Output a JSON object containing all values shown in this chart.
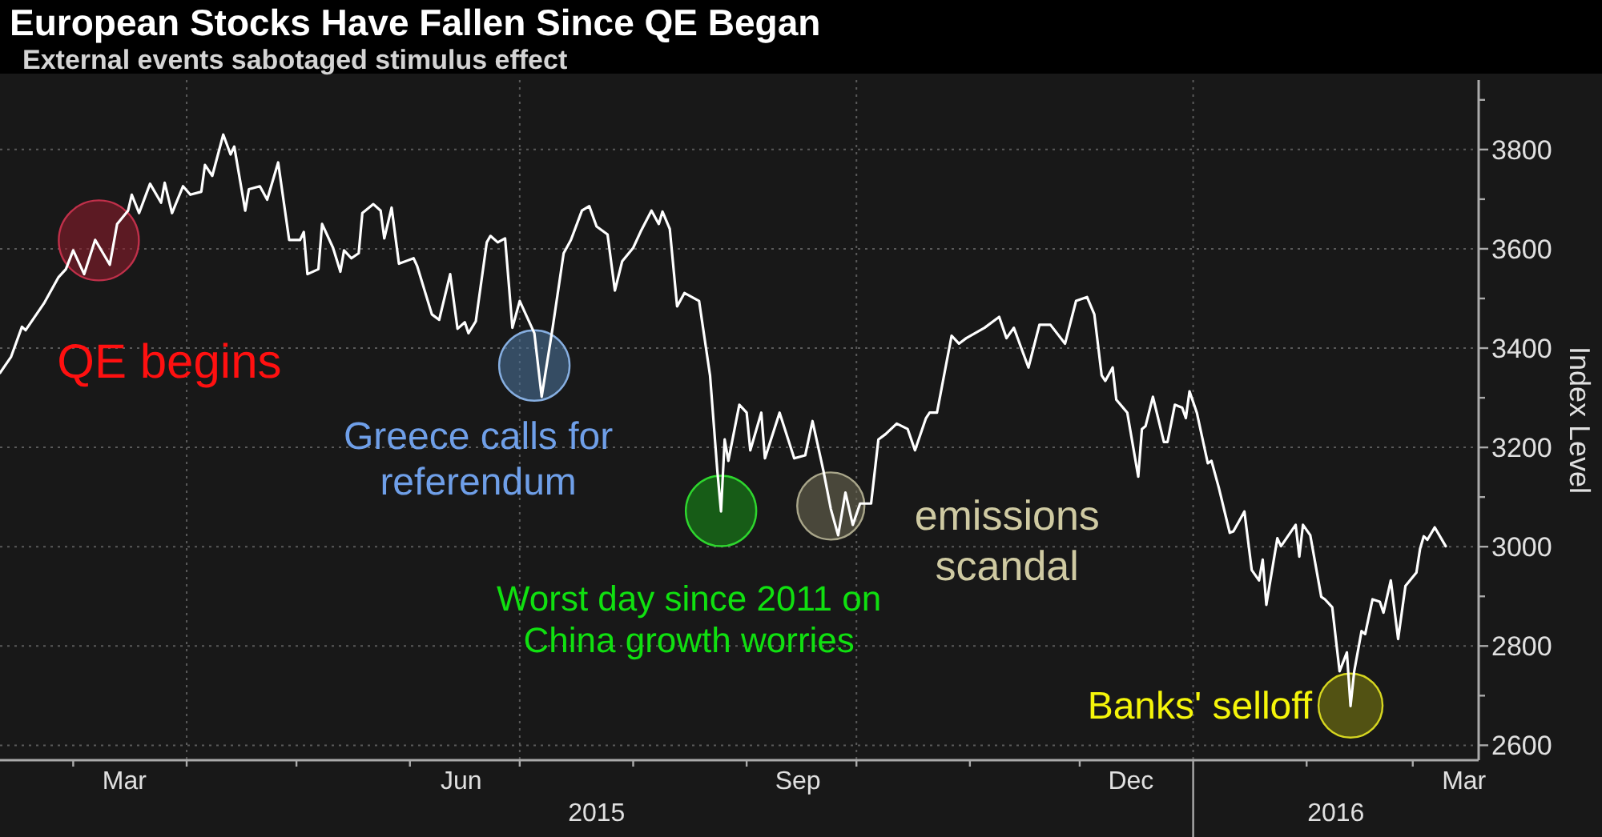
{
  "chart_data": {
    "type": "line",
    "title": "European Stocks Have Fallen Since QE Began",
    "subtitle": "External events sabotaged stimulus effect",
    "ylabel": "Index Level",
    "x": [
      "2015-02-09",
      "2015-02-12",
      "2015-02-15",
      "2015-02-16",
      "2015-02-21",
      "2015-02-25",
      "2015-02-27",
      "2015-03-01",
      "2015-03-04",
      "2015-03-07",
      "2015-03-11",
      "2015-03-13",
      "2015-03-16",
      "2015-03-17",
      "2015-03-19",
      "2015-03-22",
      "2015-03-25",
      "2015-03-26",
      "2015-03-28",
      "2015-03-31",
      "2015-04-02",
      "2015-04-05",
      "2015-04-06",
      "2015-04-08",
      "2015-04-11",
      "2015-04-13",
      "2015-04-14",
      "2015-04-17",
      "2015-04-18",
      "2015-04-21",
      "2015-04-23",
      "2015-04-26",
      "2015-04-29",
      "2015-05-02",
      "2015-05-03",
      "2015-05-04",
      "2015-05-07",
      "2015-05-08",
      "2015-05-11",
      "2015-05-13",
      "2015-05-14",
      "2015-05-16",
      "2015-05-18",
      "2015-05-19",
      "2015-05-22",
      "2015-05-24",
      "2015-05-25",
      "2015-05-27",
      "2015-05-29",
      "2015-06-02",
      "2015-06-03",
      "2015-06-07",
      "2015-06-09",
      "2015-06-12",
      "2015-06-14",
      "2015-06-16",
      "2015-06-17",
      "2015-06-19",
      "2015-06-22",
      "2015-06-23",
      "2015-06-25",
      "2015-06-27",
      "2015-06-29",
      "2015-07-01",
      "2015-07-05",
      "2015-07-07",
      "2015-07-10",
      "2015-07-13",
      "2015-07-15",
      "2015-07-18",
      "2015-07-20",
      "2015-07-22",
      "2015-07-25",
      "2015-07-27",
      "2015-07-29",
      "2015-08-01",
      "2015-08-03",
      "2015-08-06",
      "2015-08-08",
      "2015-08-09",
      "2015-08-11",
      "2015-08-13",
      "2015-08-15",
      "2015-08-19",
      "2015-08-22",
      "2015-08-24",
      "2015-08-25",
      "2015-08-26",
      "2015-08-27",
      "2015-08-30",
      "2015-09-01",
      "2015-09-02",
      "2015-09-05",
      "2015-09-06",
      "2015-09-10",
      "2015-09-14",
      "2015-09-17",
      "2015-09-19",
      "2015-09-22",
      "2015-09-24",
      "2015-09-26",
      "2015-09-28",
      "2015-09-30",
      "2015-10-02",
      "2015-10-05",
      "2015-10-07",
      "2015-10-09",
      "2015-10-12",
      "2015-10-15",
      "2015-10-17",
      "2015-10-20",
      "2015-10-21",
      "2015-10-23",
      "2015-10-27",
      "2015-10-29",
      "2015-10-31",
      "2015-11-05",
      "2015-11-09",
      "2015-11-11",
      "2015-11-13",
      "2015-11-17",
      "2015-11-20",
      "2015-11-23",
      "2015-11-27",
      "2015-11-30",
      "2015-12-03",
      "2015-12-05",
      "2015-12-07",
      "2015-12-08",
      "2015-12-10",
      "2015-12-11",
      "2015-12-14",
      "2015-12-17",
      "2015-12-18",
      "2015-12-19",
      "2015-12-21",
      "2015-12-24",
      "2015-12-25",
      "2015-12-27",
      "2015-12-29",
      "2015-12-30",
      "2015-12-31",
      "2016-01-02",
      "2016-01-05",
      "2016-01-06",
      "2016-01-08",
      "2016-01-11",
      "2016-01-12",
      "2016-01-15",
      "2016-01-17",
      "2016-01-19",
      "2016-01-20",
      "2016-01-21",
      "2016-01-24",
      "2016-01-25",
      "2016-01-29",
      "2016-01-30",
      "2016-01-31",
      "2016-02-02",
      "2016-02-05",
      "2016-02-06",
      "2016-02-08",
      "2016-02-10",
      "2016-02-12",
      "2016-02-13",
      "2016-02-14",
      "2016-02-16",
      "2016-02-17",
      "2016-02-19",
      "2016-02-21",
      "2016-02-22",
      "2016-02-24",
      "2016-02-26",
      "2016-02-28",
      "2016-03-02",
      "2016-03-03",
      "2016-03-04",
      "2016-03-05",
      "2016-03-07",
      "2016-03-10"
    ],
    "series": [
      {
        "color": "#ffffff",
        "values": [
          3350,
          3382,
          3443,
          3436,
          3490,
          3543,
          3559,
          3597,
          3549,
          3618,
          3568,
          3650,
          3677,
          3709,
          3672,
          3731,
          3693,
          3733,
          3672,
          3726,
          3709,
          3715,
          3769,
          3747,
          3830,
          3790,
          3806,
          3677,
          3720,
          3726,
          3699,
          3774,
          3618,
          3618,
          3634,
          3549,
          3559,
          3650,
          3602,
          3554,
          3597,
          3581,
          3591,
          3672,
          3690,
          3677,
          3621,
          3683,
          3570,
          3581,
          3565,
          3468,
          3457,
          3549,
          3439,
          3452,
          3430,
          3454,
          3613,
          3626,
          3613,
          3621,
          3441,
          3495,
          3430,
          3302,
          3441,
          3591,
          3618,
          3677,
          3686,
          3645,
          3629,
          3516,
          3575,
          3602,
          3634,
          3677,
          3650,
          3675,
          3640,
          3484,
          3511,
          3495,
          3345,
          3152,
          3071,
          3216,
          3173,
          3286,
          3270,
          3194,
          3270,
          3178,
          3270,
          3178,
          3184,
          3253,
          3152,
          3076,
          3023,
          3109,
          3044,
          3087,
          3087,
          3216,
          3227,
          3248,
          3237,
          3194,
          3259,
          3270,
          3270,
          3425,
          3409,
          3420,
          3441,
          3463,
          3420,
          3441,
          3361,
          3447,
          3447,
          3409,
          3495,
          3503,
          3468,
          3345,
          3334,
          3361,
          3296,
          3270,
          3141,
          3237,
          3243,
          3302,
          3211,
          3211,
          3286,
          3280,
          3259,
          3313,
          3270,
          3168,
          3173,
          3119,
          3028,
          3031,
          3071,
          2953,
          2932,
          2974,
          2883,
          3017,
          3001,
          3044,
          2980,
          3044,
          3023,
          2899,
          2894,
          2878,
          2749,
          2787,
          2679,
          2749,
          2830,
          2824,
          2894,
          2889,
          2867,
          2932,
          2814,
          2921,
          2948,
          2996,
          3021,
          3014,
          3039,
          3001
        ]
      }
    ],
    "xlim": [
      "2015-02-09",
      "2016-03-19"
    ],
    "xticks": [
      {
        "value": "2015-03-01",
        "label": null
      },
      {
        "value": "2015-04-01",
        "label": null
      },
      {
        "value": "2015-05-01",
        "label": null
      },
      {
        "value": "2015-06-01",
        "label": null
      },
      {
        "value": "2015-07-01",
        "label": null
      },
      {
        "value": "2015-08-01",
        "label": null
      },
      {
        "value": "2015-09-01",
        "label": null
      },
      {
        "value": "2015-10-01",
        "label": null
      },
      {
        "value": "2015-11-01",
        "label": null
      },
      {
        "value": "2015-12-01",
        "label": null
      },
      {
        "value": "2016-01-01",
        "label": null
      },
      {
        "value": "2016-02-01",
        "label": null
      },
      {
        "value": "2016-03-01",
        "label": null
      },
      {
        "value": "2015-03-15",
        "label": "Mar"
      },
      {
        "value": "2015-06-15",
        "label": "Jun"
      },
      {
        "value": "2015-09-15",
        "label": "Sep"
      },
      {
        "value": "2015-12-15",
        "label": "Dec"
      },
      {
        "value": "2016-03-15",
        "label": "Mar"
      }
    ],
    "ylim": [
      2570,
      3940
    ],
    "yticks": [
      2600,
      {
        "value": 2700,
        "label": null
      },
      2800,
      {
        "value": 2900,
        "label": null
      },
      3000,
      {
        "value": 3100,
        "label": null
      },
      3200,
      {
        "value": 3300,
        "label": null
      },
      3400,
      {
        "value": 3500,
        "label": null
      },
      3600,
      {
        "value": 3700,
        "label": null
      },
      3800,
      {
        "value": 3900,
        "label": null
      }
    ],
    "grid": true,
    "annotations": [
      "2015",
      "2016",
      {
        "text": "QE begins",
        "x": "2015-03-08",
        "y": 3617
      },
      {
        "text": "Greece calls for referendum",
        "x": "2015-07-05",
        "y": 3365
      },
      {
        "text": "Worst day since 2011 on China growth worries",
        "x": "2015-08-25",
        "y": 3072
      },
      {
        "text": "emissions scandal",
        "x": "2015-09-24",
        "y": 3082
      },
      {
        "text": "Banks' selloff",
        "x": "2016-02-13",
        "y": 2680
      }
    ]
  }
}
